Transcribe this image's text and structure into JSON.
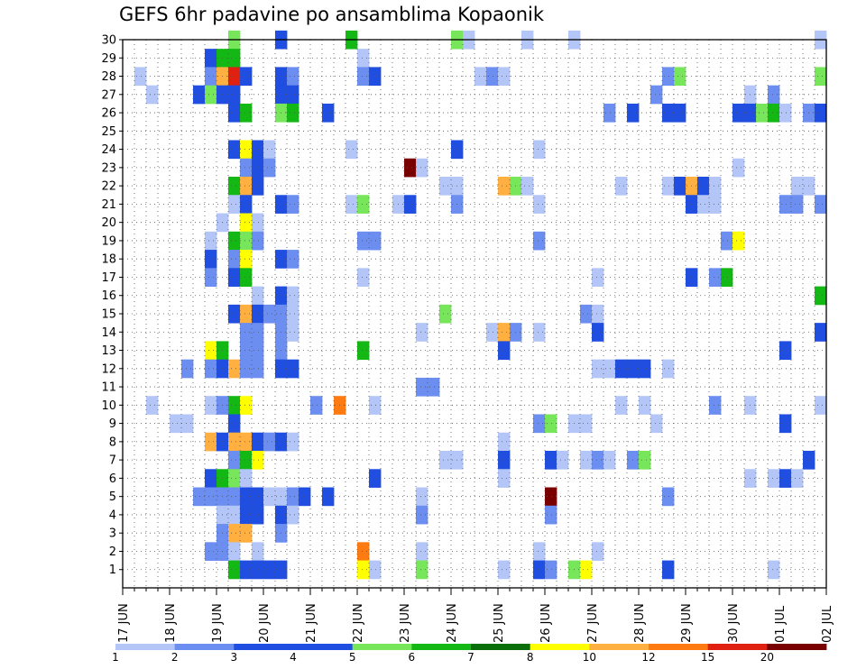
{
  "chart_data": {
    "type": "heatmap",
    "title": "GEFS 6hr padavine po ansamblima Kopaonik",
    "y_ticks": [
      "1",
      "2",
      "3",
      "4",
      "5",
      "6",
      "7",
      "8",
      "9",
      "10",
      "11",
      "12",
      "13",
      "14",
      "15",
      "16",
      "17",
      "18",
      "19",
      "20",
      "21",
      "22",
      "23",
      "24",
      "25",
      "26",
      "27",
      "28",
      "29",
      "30"
    ],
    "ylim": [
      0,
      30
    ],
    "x_ticks": [
      "17 JUN",
      "18 JUN",
      "19 JUN",
      "20 JUN",
      "21 JUN",
      "22 JUN",
      "23 JUN",
      "24 JUN",
      "25 JUN",
      "26 JUN",
      "27 JUN",
      "28 JUN",
      "29 JUN",
      "30 JUN",
      "01 JUL",
      "02 JUL"
    ],
    "x_steps_per_day": 4,
    "grid": true,
    "colorbar": {
      "labels": [
        "1",
        "2",
        "3",
        "4",
        "5",
        "6",
        "7",
        "8",
        "10",
        "12",
        "15",
        "20"
      ],
      "colors": [
        "#b3c6f7",
        "#6b8ef0",
        "#1f4ee0",
        "#1f4ee0",
        "#77e65a",
        "#14b814",
        "#0a6e0a",
        "#ffff00",
        "#ffb040",
        "#ff7a10",
        "#e02010",
        "#7a0000"
      ]
    },
    "cells": [
      {
        "x": 9,
        "y": 30,
        "c": 5
      },
      {
        "x": 13,
        "y": 30,
        "c": 3
      },
      {
        "x": 19,
        "y": 30,
        "c": 6
      },
      {
        "x": 28,
        "y": 30,
        "c": 5
      },
      {
        "x": 29,
        "y": 30,
        "c": 1
      },
      {
        "x": 34,
        "y": 30,
        "c": 1
      },
      {
        "x": 38,
        "y": 30,
        "c": 1
      },
      {
        "x": 59,
        "y": 30,
        "c": 1
      },
      {
        "x": 7,
        "y": 29,
        "c": 3
      },
      {
        "x": 8,
        "y": 29,
        "c": 6
      },
      {
        "x": 9,
        "y": 29,
        "c": 6
      },
      {
        "x": 20,
        "y": 29,
        "c": 1
      },
      {
        "x": 1,
        "y": 28,
        "c": 1
      },
      {
        "x": 7,
        "y": 28,
        "c": 2
      },
      {
        "x": 8,
        "y": 28,
        "c": 10
      },
      {
        "x": 9,
        "y": 28,
        "c": 15
      },
      {
        "x": 10,
        "y": 28,
        "c": 4
      },
      {
        "x": 13,
        "y": 28,
        "c": 3
      },
      {
        "x": 14,
        "y": 28,
        "c": 2
      },
      {
        "x": 20,
        "y": 28,
        "c": 2
      },
      {
        "x": 21,
        "y": 28,
        "c": 4
      },
      {
        "x": 30,
        "y": 28,
        "c": 1
      },
      {
        "x": 31,
        "y": 28,
        "c": 2
      },
      {
        "x": 32,
        "y": 28,
        "c": 1
      },
      {
        "x": 46,
        "y": 28,
        "c": 2
      },
      {
        "x": 47,
        "y": 28,
        "c": 5
      },
      {
        "x": 59,
        "y": 28,
        "c": 5
      },
      {
        "x": 2,
        "y": 27,
        "c": 1
      },
      {
        "x": 6,
        "y": 27,
        "c": 3
      },
      {
        "x": 7,
        "y": 27,
        "c": 5
      },
      {
        "x": 8,
        "y": 27,
        "c": 3
      },
      {
        "x": 9,
        "y": 27,
        "c": 3
      },
      {
        "x": 13,
        "y": 27,
        "c": 4
      },
      {
        "x": 14,
        "y": 27,
        "c": 3
      },
      {
        "x": 45,
        "y": 27,
        "c": 2
      },
      {
        "x": 53,
        "y": 27,
        "c": 1
      },
      {
        "x": 55,
        "y": 27,
        "c": 2
      },
      {
        "x": 9,
        "y": 26,
        "c": 3
      },
      {
        "x": 10,
        "y": 26,
        "c": 6
      },
      {
        "x": 13,
        "y": 26,
        "c": 5
      },
      {
        "x": 14,
        "y": 26,
        "c": 6
      },
      {
        "x": 17,
        "y": 26,
        "c": 3
      },
      {
        "x": 41,
        "y": 26,
        "c": 2
      },
      {
        "x": 43,
        "y": 26,
        "c": 3
      },
      {
        "x": 46,
        "y": 26,
        "c": 3
      },
      {
        "x": 47,
        "y": 26,
        "c": 4
      },
      {
        "x": 52,
        "y": 26,
        "c": 3
      },
      {
        "x": 53,
        "y": 26,
        "c": 3
      },
      {
        "x": 54,
        "y": 26,
        "c": 5
      },
      {
        "x": 55,
        "y": 26,
        "c": 6
      },
      {
        "x": 56,
        "y": 26,
        "c": 1
      },
      {
        "x": 58,
        "y": 26,
        "c": 2
      },
      {
        "x": 59,
        "y": 26,
        "c": 4
      },
      {
        "x": 9,
        "y": 24,
        "c": 3
      },
      {
        "x": 10,
        "y": 24,
        "c": 8
      },
      {
        "x": 11,
        "y": 24,
        "c": 3
      },
      {
        "x": 12,
        "y": 24,
        "c": 1
      },
      {
        "x": 19,
        "y": 24,
        "c": 1
      },
      {
        "x": 28,
        "y": 24,
        "c": 3
      },
      {
        "x": 35,
        "y": 24,
        "c": 1
      },
      {
        "x": 10,
        "y": 23,
        "c": 2
      },
      {
        "x": 11,
        "y": 23,
        "c": 4
      },
      {
        "x": 12,
        "y": 23,
        "c": 2
      },
      {
        "x": 24,
        "y": 23,
        "c": 20
      },
      {
        "x": 25,
        "y": 23,
        "c": 1
      },
      {
        "x": 52,
        "y": 23,
        "c": 1
      },
      {
        "x": 9,
        "y": 22,
        "c": 6
      },
      {
        "x": 10,
        "y": 22,
        "c": 10
      },
      {
        "x": 11,
        "y": 22,
        "c": 4
      },
      {
        "x": 27,
        "y": 22,
        "c": 1
      },
      {
        "x": 28,
        "y": 22,
        "c": 1
      },
      {
        "x": 32,
        "y": 22,
        "c": 10
      },
      {
        "x": 33,
        "y": 22,
        "c": 5
      },
      {
        "x": 34,
        "y": 22,
        "c": 1
      },
      {
        "x": 42,
        "y": 22,
        "c": 1
      },
      {
        "x": 46,
        "y": 22,
        "c": 1
      },
      {
        "x": 47,
        "y": 22,
        "c": 3
      },
      {
        "x": 48,
        "y": 22,
        "c": 10
      },
      {
        "x": 49,
        "y": 22,
        "c": 3
      },
      {
        "x": 50,
        "y": 22,
        "c": 1
      },
      {
        "x": 57,
        "y": 22,
        "c": 1
      },
      {
        "x": 58,
        "y": 22,
        "c": 1
      },
      {
        "x": 9,
        "y": 21,
        "c": 1
      },
      {
        "x": 10,
        "y": 21,
        "c": 3
      },
      {
        "x": 13,
        "y": 21,
        "c": 3
      },
      {
        "x": 14,
        "y": 21,
        "c": 2
      },
      {
        "x": 19,
        "y": 21,
        "c": 1
      },
      {
        "x": 20,
        "y": 21,
        "c": 5
      },
      {
        "x": 23,
        "y": 21,
        "c": 1
      },
      {
        "x": 24,
        "y": 21,
        "c": 3
      },
      {
        "x": 28,
        "y": 21,
        "c": 2
      },
      {
        "x": 35,
        "y": 21,
        "c": 1
      },
      {
        "x": 48,
        "y": 21,
        "c": 3
      },
      {
        "x": 49,
        "y": 21,
        "c": 1
      },
      {
        "x": 50,
        "y": 21,
        "c": 1
      },
      {
        "x": 56,
        "y": 21,
        "c": 2
      },
      {
        "x": 57,
        "y": 21,
        "c": 2
      },
      {
        "x": 59,
        "y": 21,
        "c": 2
      },
      {
        "x": 8,
        "y": 20,
        "c": 1
      },
      {
        "x": 10,
        "y": 20,
        "c": 8
      },
      {
        "x": 11,
        "y": 20,
        "c": 1
      },
      {
        "x": 7,
        "y": 19,
        "c": 1
      },
      {
        "x": 9,
        "y": 19,
        "c": 6
      },
      {
        "x": 10,
        "y": 19,
        "c": 5
      },
      {
        "x": 11,
        "y": 19,
        "c": 2
      },
      {
        "x": 20,
        "y": 19,
        "c": 2
      },
      {
        "x": 21,
        "y": 19,
        "c": 2
      },
      {
        "x": 35,
        "y": 19,
        "c": 2
      },
      {
        "x": 51,
        "y": 19,
        "c": 2
      },
      {
        "x": 52,
        "y": 19,
        "c": 8
      },
      {
        "x": 7,
        "y": 18,
        "c": 3
      },
      {
        "x": 9,
        "y": 18,
        "c": 2
      },
      {
        "x": 10,
        "y": 18,
        "c": 8
      },
      {
        "x": 13,
        "y": 18,
        "c": 3
      },
      {
        "x": 14,
        "y": 18,
        "c": 2
      },
      {
        "x": 7,
        "y": 17,
        "c": 2
      },
      {
        "x": 9,
        "y": 17,
        "c": 4
      },
      {
        "x": 10,
        "y": 17,
        "c": 6
      },
      {
        "x": 20,
        "y": 17,
        "c": 1
      },
      {
        "x": 40,
        "y": 17,
        "c": 1
      },
      {
        "x": 48,
        "y": 17,
        "c": 3
      },
      {
        "x": 50,
        "y": 17,
        "c": 2
      },
      {
        "x": 51,
        "y": 17,
        "c": 6
      },
      {
        "x": 11,
        "y": 16,
        "c": 1
      },
      {
        "x": 13,
        "y": 16,
        "c": 4
      },
      {
        "x": 14,
        "y": 16,
        "c": 1
      },
      {
        "x": 59,
        "y": 16,
        "c": 6
      },
      {
        "x": 9,
        "y": 15,
        "c": 3
      },
      {
        "x": 10,
        "y": 15,
        "c": 10
      },
      {
        "x": 11,
        "y": 15,
        "c": 4
      },
      {
        "x": 12,
        "y": 15,
        "c": 2
      },
      {
        "x": 13,
        "y": 15,
        "c": 2
      },
      {
        "x": 14,
        "y": 15,
        "c": 1
      },
      {
        "x": 27,
        "y": 15,
        "c": 5
      },
      {
        "x": 39,
        "y": 15,
        "c": 2
      },
      {
        "x": 40,
        "y": 15,
        "c": 1
      },
      {
        "x": 10,
        "y": 14,
        "c": 2
      },
      {
        "x": 11,
        "y": 14,
        "c": 2
      },
      {
        "x": 13,
        "y": 14,
        "c": 2
      },
      {
        "x": 14,
        "y": 14,
        "c": 1
      },
      {
        "x": 25,
        "y": 14,
        "c": 1
      },
      {
        "x": 31,
        "y": 14,
        "c": 1
      },
      {
        "x": 32,
        "y": 14,
        "c": 10
      },
      {
        "x": 33,
        "y": 14,
        "c": 2
      },
      {
        "x": 35,
        "y": 14,
        "c": 1
      },
      {
        "x": 40,
        "y": 14,
        "c": 4
      },
      {
        "x": 59,
        "y": 14,
        "c": 3
      },
      {
        "x": 7,
        "y": 13,
        "c": 8
      },
      {
        "x": 8,
        "y": 13,
        "c": 6
      },
      {
        "x": 10,
        "y": 13,
        "c": 2
      },
      {
        "x": 11,
        "y": 13,
        "c": 2
      },
      {
        "x": 13,
        "y": 13,
        "c": 2
      },
      {
        "x": 20,
        "y": 13,
        "c": 6
      },
      {
        "x": 32,
        "y": 13,
        "c": 3
      },
      {
        "x": 56,
        "y": 13,
        "c": 3
      },
      {
        "x": 5,
        "y": 12,
        "c": 2
      },
      {
        "x": 7,
        "y": 12,
        "c": 2
      },
      {
        "x": 8,
        "y": 12,
        "c": 4
      },
      {
        "x": 9,
        "y": 12,
        "c": 10
      },
      {
        "x": 10,
        "y": 12,
        "c": 2
      },
      {
        "x": 11,
        "y": 12,
        "c": 2
      },
      {
        "x": 13,
        "y": 12,
        "c": 3
      },
      {
        "x": 14,
        "y": 12,
        "c": 3
      },
      {
        "x": 40,
        "y": 12,
        "c": 1
      },
      {
        "x": 41,
        "y": 12,
        "c": 1
      },
      {
        "x": 42,
        "y": 12,
        "c": 4
      },
      {
        "x": 43,
        "y": 12,
        "c": 3
      },
      {
        "x": 44,
        "y": 12,
        "c": 3
      },
      {
        "x": 46,
        "y": 12,
        "c": 1
      },
      {
        "x": 25,
        "y": 11,
        "c": 2
      },
      {
        "x": 26,
        "y": 11,
        "c": 2
      },
      {
        "x": 2,
        "y": 10,
        "c": 1
      },
      {
        "x": 7,
        "y": 10,
        "c": 1
      },
      {
        "x": 8,
        "y": 10,
        "c": 2
      },
      {
        "x": 9,
        "y": 10,
        "c": 6
      },
      {
        "x": 10,
        "y": 10,
        "c": 8
      },
      {
        "x": 16,
        "y": 10,
        "c": 2
      },
      {
        "x": 18,
        "y": 10,
        "c": 12
      },
      {
        "x": 21,
        "y": 10,
        "c": 1
      },
      {
        "x": 42,
        "y": 10,
        "c": 1
      },
      {
        "x": 44,
        "y": 10,
        "c": 1
      },
      {
        "x": 50,
        "y": 10,
        "c": 2
      },
      {
        "x": 53,
        "y": 10,
        "c": 1
      },
      {
        "x": 59,
        "y": 10,
        "c": 1
      },
      {
        "x": 4,
        "y": 9,
        "c": 1
      },
      {
        "x": 5,
        "y": 9,
        "c": 1
      },
      {
        "x": 9,
        "y": 9,
        "c": 4
      },
      {
        "x": 35,
        "y": 9,
        "c": 2
      },
      {
        "x": 36,
        "y": 9,
        "c": 5
      },
      {
        "x": 38,
        "y": 9,
        "c": 1
      },
      {
        "x": 39,
        "y": 9,
        "c": 1
      },
      {
        "x": 45,
        "y": 9,
        "c": 1
      },
      {
        "x": 56,
        "y": 9,
        "c": 3
      },
      {
        "x": 7,
        "y": 8,
        "c": 10
      },
      {
        "x": 8,
        "y": 8,
        "c": 4
      },
      {
        "x": 9,
        "y": 8,
        "c": 10
      },
      {
        "x": 10,
        "y": 8,
        "c": 10
      },
      {
        "x": 11,
        "y": 8,
        "c": 4
      },
      {
        "x": 12,
        "y": 8,
        "c": 2
      },
      {
        "x": 13,
        "y": 8,
        "c": 3
      },
      {
        "x": 14,
        "y": 8,
        "c": 1
      },
      {
        "x": 32,
        "y": 8,
        "c": 1
      },
      {
        "x": 9,
        "y": 7,
        "c": 2
      },
      {
        "x": 10,
        "y": 7,
        "c": 6
      },
      {
        "x": 11,
        "y": 7,
        "c": 8
      },
      {
        "x": 27,
        "y": 7,
        "c": 1
      },
      {
        "x": 28,
        "y": 7,
        "c": 1
      },
      {
        "x": 32,
        "y": 7,
        "c": 3
      },
      {
        "x": 36,
        "y": 7,
        "c": 3
      },
      {
        "x": 37,
        "y": 7,
        "c": 1
      },
      {
        "x": 39,
        "y": 7,
        "c": 1
      },
      {
        "x": 40,
        "y": 7,
        "c": 2
      },
      {
        "x": 41,
        "y": 7,
        "c": 1
      },
      {
        "x": 43,
        "y": 7,
        "c": 2
      },
      {
        "x": 44,
        "y": 7,
        "c": 5
      },
      {
        "x": 58,
        "y": 7,
        "c": 3
      },
      {
        "x": 7,
        "y": 6,
        "c": 3
      },
      {
        "x": 8,
        "y": 6,
        "c": 6
      },
      {
        "x": 9,
        "y": 6,
        "c": 5
      },
      {
        "x": 10,
        "y": 6,
        "c": 1
      },
      {
        "x": 21,
        "y": 6,
        "c": 3
      },
      {
        "x": 32,
        "y": 6,
        "c": 1
      },
      {
        "x": 53,
        "y": 6,
        "c": 1
      },
      {
        "x": 55,
        "y": 6,
        "c": 1
      },
      {
        "x": 56,
        "y": 6,
        "c": 4
      },
      {
        "x": 57,
        "y": 6,
        "c": 1
      },
      {
        "x": 6,
        "y": 5,
        "c": 2
      },
      {
        "x": 7,
        "y": 5,
        "c": 2
      },
      {
        "x": 8,
        "y": 5,
        "c": 2
      },
      {
        "x": 9,
        "y": 5,
        "c": 2
      },
      {
        "x": 10,
        "y": 5,
        "c": 3
      },
      {
        "x": 11,
        "y": 5,
        "c": 3
      },
      {
        "x": 12,
        "y": 5,
        "c": 1
      },
      {
        "x": 13,
        "y": 5,
        "c": 1
      },
      {
        "x": 14,
        "y": 5,
        "c": 2
      },
      {
        "x": 15,
        "y": 5,
        "c": 3
      },
      {
        "x": 17,
        "y": 5,
        "c": 4
      },
      {
        "x": 25,
        "y": 5,
        "c": 1
      },
      {
        "x": 36,
        "y": 5,
        "c": 20
      },
      {
        "x": 46,
        "y": 5,
        "c": 2
      },
      {
        "x": 8,
        "y": 4,
        "c": 1
      },
      {
        "x": 9,
        "y": 4,
        "c": 1
      },
      {
        "x": 10,
        "y": 4,
        "c": 3
      },
      {
        "x": 11,
        "y": 4,
        "c": 4
      },
      {
        "x": 13,
        "y": 4,
        "c": 3
      },
      {
        "x": 14,
        "y": 4,
        "c": 1
      },
      {
        "x": 25,
        "y": 4,
        "c": 2
      },
      {
        "x": 36,
        "y": 4,
        "c": 2
      },
      {
        "x": 8,
        "y": 3,
        "c": 2
      },
      {
        "x": 9,
        "y": 3,
        "c": 10
      },
      {
        "x": 10,
        "y": 3,
        "c": 10
      },
      {
        "x": 13,
        "y": 3,
        "c": 2
      },
      {
        "x": 7,
        "y": 2,
        "c": 2
      },
      {
        "x": 8,
        "y": 2,
        "c": 2
      },
      {
        "x": 9,
        "y": 2,
        "c": 1
      },
      {
        "x": 11,
        "y": 2,
        "c": 1
      },
      {
        "x": 20,
        "y": 2,
        "c": 12
      },
      {
        "x": 25,
        "y": 2,
        "c": 1
      },
      {
        "x": 35,
        "y": 2,
        "c": 1
      },
      {
        "x": 40,
        "y": 2,
        "c": 1
      },
      {
        "x": 9,
        "y": 1,
        "c": 6
      },
      {
        "x": 10,
        "y": 1,
        "c": 4
      },
      {
        "x": 11,
        "y": 1,
        "c": 4
      },
      {
        "x": 12,
        "y": 1,
        "c": 3
      },
      {
        "x": 13,
        "y": 1,
        "c": 3
      },
      {
        "x": 20,
        "y": 1,
        "c": 8
      },
      {
        "x": 21,
        "y": 1,
        "c": 1
      },
      {
        "x": 25,
        "y": 1,
        "c": 5
      },
      {
        "x": 32,
        "y": 1,
        "c": 1
      },
      {
        "x": 35,
        "y": 1,
        "c": 3
      },
      {
        "x": 36,
        "y": 1,
        "c": 2
      },
      {
        "x": 38,
        "y": 1,
        "c": 5
      },
      {
        "x": 39,
        "y": 1,
        "c": 8
      },
      {
        "x": 46,
        "y": 1,
        "c": 3
      },
      {
        "x": 55,
        "y": 1,
        "c": 1
      }
    ]
  }
}
